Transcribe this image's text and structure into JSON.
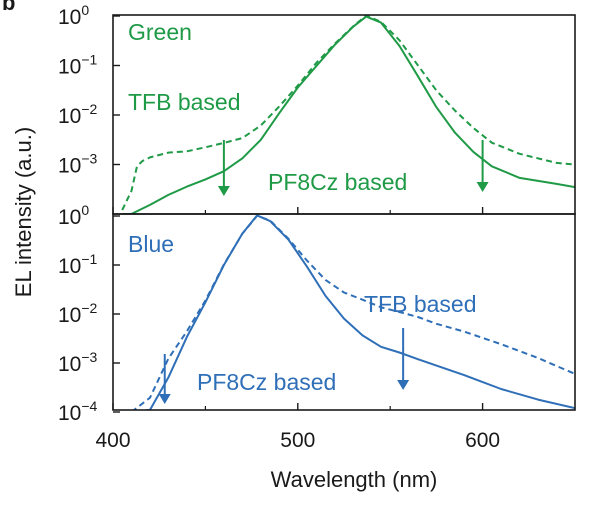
{
  "chart_data": [
    {
      "type": "line",
      "panel": "Green",
      "title": "Green",
      "xlabel": "Wavelength (nm)",
      "ylabel": "EL intensity (a.u.)",
      "xlim": [
        400,
        650
      ],
      "ylim": [
        0.0001,
        1
      ],
      "yscale": "log",
      "color": "#1f9a46",
      "annotations": [
        "TFB based",
        "PF8Cz based"
      ],
      "series": [
        {
          "name": "TFB based",
          "style": "dashed",
          "x": [
            405,
            410,
            413,
            416,
            420,
            430,
            440,
            450,
            460,
            470,
            480,
            490,
            500,
            510,
            520,
            530,
            537,
            545,
            555,
            565,
            575,
            585,
            595,
            605,
            620,
            640,
            650
          ],
          "y": [
            0.00012,
            0.0003,
            0.0009,
            0.0012,
            0.0014,
            0.0017,
            0.0019,
            0.0022,
            0.0027,
            0.0035,
            0.006,
            0.015,
            0.04,
            0.11,
            0.28,
            0.62,
            1.0,
            0.78,
            0.32,
            0.1,
            0.032,
            0.012,
            0.0055,
            0.0028,
            0.0016,
            0.0011,
            0.001
          ]
        },
        {
          "name": "PF8Cz based",
          "style": "solid",
          "x": [
            405,
            410,
            420,
            430,
            440,
            450,
            460,
            470,
            480,
            490,
            500,
            510,
            520,
            530,
            537,
            545,
            555,
            565,
            575,
            585,
            595,
            605,
            620,
            640,
            650
          ],
          "y": [
            0.0001,
            0.0001,
            0.00015,
            0.00025,
            0.00035,
            0.0005,
            0.00075,
            0.0013,
            0.0032,
            0.011,
            0.035,
            0.1,
            0.26,
            0.6,
            1.0,
            0.72,
            0.25,
            0.062,
            0.014,
            0.0045,
            0.0018,
            0.0009,
            0.00055,
            0.0004,
            0.00035
          ]
        }
      ]
    },
    {
      "type": "line",
      "panel": "Blue",
      "title": "Blue",
      "xlabel": "Wavelength (nm)",
      "ylabel": "EL intensity (a.u.)",
      "xlim": [
        400,
        650
      ],
      "ylim": [
        0.0001,
        1
      ],
      "yscale": "log",
      "color": "#2f6fb8",
      "annotations": [
        "TFB based",
        "PF8Cz based"
      ],
      "series": [
        {
          "name": "TFB based",
          "style": "dashed",
          "x": [
            410,
            420,
            430,
            440,
            450,
            460,
            470,
            478,
            485,
            495,
            505,
            515,
            525,
            535,
            545,
            555,
            565,
            575,
            590,
            610,
            630,
            650
          ],
          "y": [
            0.0001,
            0.0002,
            0.0012,
            0.0045,
            0.019,
            0.1,
            0.45,
            1.0,
            0.8,
            0.35,
            0.12,
            0.05,
            0.028,
            0.019,
            0.014,
            0.011,
            0.0085,
            0.0065,
            0.0043,
            0.0024,
            0.0013,
            0.0006
          ]
        },
        {
          "name": "PF8Cz based",
          "style": "solid",
          "x": [
            410,
            420,
            430,
            440,
            450,
            460,
            470,
            478,
            485,
            495,
            505,
            515,
            525,
            535,
            545,
            555,
            565,
            575,
            590,
            610,
            630,
            650
          ],
          "y": [
            0.0001,
            0.00011,
            0.0005,
            0.0035,
            0.017,
            0.1,
            0.45,
            1.0,
            0.8,
            0.33,
            0.09,
            0.024,
            0.008,
            0.0036,
            0.0022,
            0.0016,
            0.0012,
            0.0009,
            0.00055,
            0.0003,
            0.00018,
            0.00012
          ]
        }
      ]
    }
  ],
  "figure": {
    "panel_letter": "b",
    "ylabel": "EL intensity (a.u.)",
    "xlabel": "Wavelength (nm)",
    "x_ticks": [
      "400",
      "500",
      "600"
    ],
    "top_y_ticks": [
      {
        "base": "10",
        "exp": "0"
      },
      {
        "base": "10",
        "exp": "−1"
      },
      {
        "base": "10",
        "exp": "−2"
      },
      {
        "base": "10",
        "exp": "−3"
      }
    ],
    "bottom_y_ticks": [
      {
        "base": "10",
        "exp": "0"
      },
      {
        "base": "10",
        "exp": "−1"
      },
      {
        "base": "10",
        "exp": "−2"
      },
      {
        "base": "10",
        "exp": "−3"
      },
      {
        "base": "10",
        "exp": "−4"
      }
    ],
    "arrows_top_x": [
      460,
      600
    ],
    "arrows_bottom_x": [
      428,
      557
    ]
  }
}
